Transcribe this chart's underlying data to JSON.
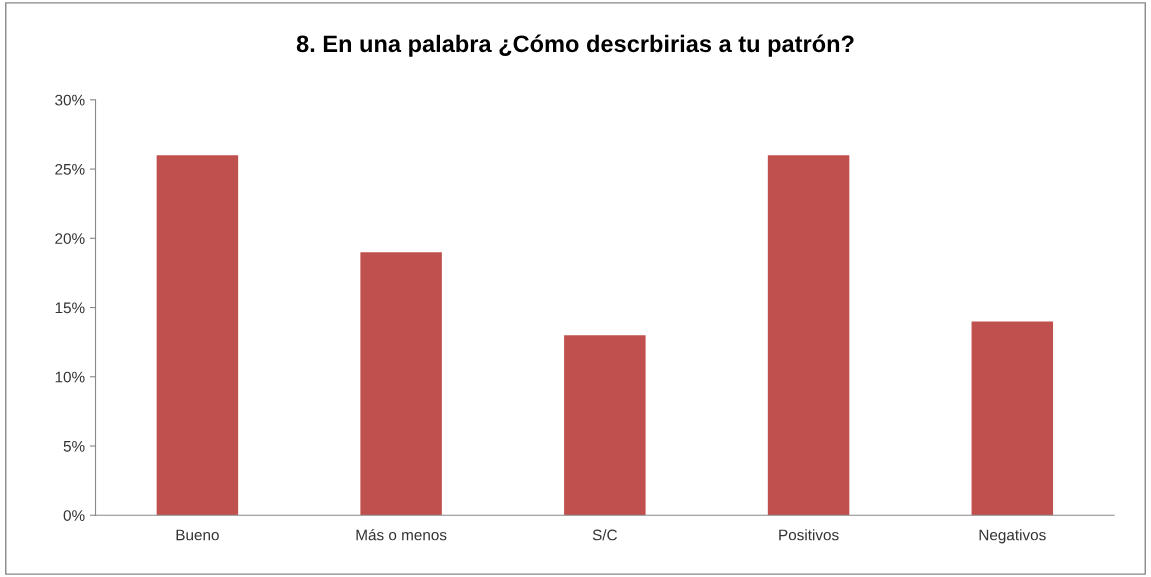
{
  "chart_data": {
    "type": "bar",
    "title": "8. En una palabra ¿Cómo descrbirias a tu patrón?",
    "categories": [
      "Bueno",
      "Más o menos",
      "S/C",
      "Positivos",
      "Negativos"
    ],
    "values": [
      26,
      19,
      13,
      26,
      14
    ],
    "color": "#c0504d",
    "ylim": [
      0,
      30
    ],
    "yticks": [
      {
        "value": 0,
        "label": "0%"
      },
      {
        "value": 5,
        "label": "5%"
      },
      {
        "value": 10,
        "label": "10%"
      },
      {
        "value": 15,
        "label": "15%"
      },
      {
        "value": 20,
        "label": "20%"
      },
      {
        "value": 25,
        "label": "25%"
      },
      {
        "value": 30,
        "label": "30%"
      }
    ],
    "grid": false,
    "legend": false
  }
}
